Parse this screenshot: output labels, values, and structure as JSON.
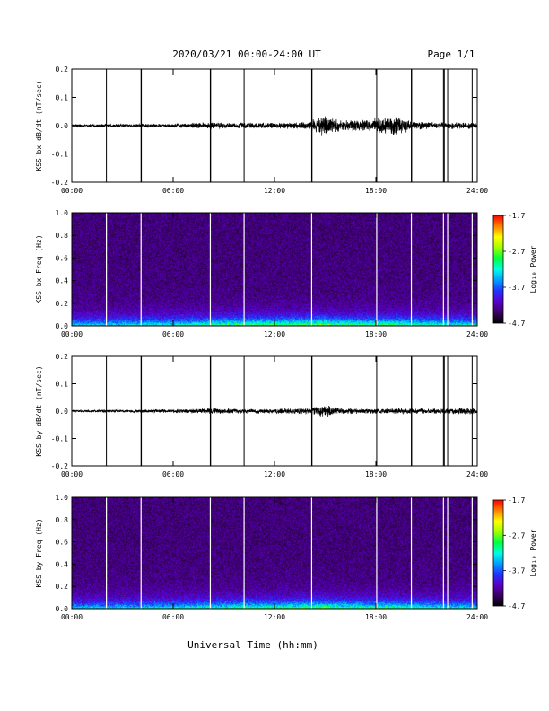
{
  "header": {
    "title": "2020/03/21  00:00-24:00 UT",
    "page": "Page 1/1"
  },
  "xaxis": {
    "label": "Universal Time (hh:mm)",
    "ticks": [
      "00:00",
      "06:00",
      "12:00",
      "18:00",
      "24:00"
    ]
  },
  "colors": {
    "colormap": [
      "#000000",
      "#3b0064",
      "#5a00c8",
      "#2233ff",
      "#00a0ff",
      "#00ffe0",
      "#00ff40",
      "#a0ff00",
      "#ffff00",
      "#ff8000",
      "#ff0000"
    ],
    "trace": "#000000",
    "gap_lines_time": "#000000",
    "gap_lines_spec": "#ffffff"
  },
  "chart_data": [
    {
      "type": "line",
      "ylabel": "KSS bx dB/dt (nT/sec)",
      "ylim": [
        -0.2,
        0.2
      ],
      "yticks": [
        "0.2",
        "0.1",
        "0.0",
        "-0.1",
        "-0.2"
      ],
      "xlim_hours": [
        0,
        24
      ],
      "gap_times_hours": [
        2.05,
        4.1,
        4.12,
        8.2,
        8.22,
        10.2,
        14.2,
        14.22,
        18.05,
        20.1,
        20.12,
        22.0,
        22.05,
        22.25,
        23.7
      ],
      "noise_envelope": {
        "x_hours": [
          0,
          3,
          6,
          8,
          10,
          12,
          14,
          14.5,
          15,
          15.5,
          16,
          17,
          18,
          18.5,
          19,
          19.5,
          20,
          21,
          22,
          23,
          24
        ],
        "amplitude": [
          0.004,
          0.005,
          0.006,
          0.009,
          0.008,
          0.008,
          0.01,
          0.022,
          0.028,
          0.02,
          0.014,
          0.016,
          0.02,
          0.026,
          0.028,
          0.024,
          0.014,
          0.01,
          0.009,
          0.009,
          0.008
        ]
      }
    },
    {
      "type": "heatmap",
      "ylabel": "KSS bx Freq (Hz)",
      "ylim": [
        0.0,
        1.0
      ],
      "yticks": [
        "1.0",
        "0.8",
        "0.6",
        "0.4",
        "0.2",
        "0.0"
      ],
      "xlim_hours": [
        0,
        24
      ],
      "colorbar": {
        "label": "Log₁₀ Power",
        "range": [
          -4.7,
          -1.7
        ],
        "ticks": [
          "-1.7",
          "-2.7",
          "-3.7",
          "-4.7"
        ]
      },
      "gap_times_hours": [
        2.05,
        4.1,
        8.2,
        10.2,
        14.2,
        18.05,
        20.1,
        22.0,
        22.25,
        23.7
      ],
      "low_freq_power": {
        "x_hours": [
          0,
          3,
          6,
          8,
          10,
          12,
          14,
          15,
          16,
          18,
          19,
          20,
          22,
          24
        ],
        "intensity": [
          0.35,
          0.4,
          0.42,
          0.5,
          0.55,
          0.55,
          0.6,
          0.62,
          0.55,
          0.52,
          0.55,
          0.5,
          0.45,
          0.42
        ]
      }
    },
    {
      "type": "line",
      "ylabel": "KSS by dB/dt (nT/sec)",
      "ylim": [
        -0.2,
        0.2
      ],
      "yticks": [
        "0.2",
        "0.1",
        "0.0",
        "-0.1",
        "-0.2"
      ],
      "xlim_hours": [
        0,
        24
      ],
      "gap_times_hours": [
        2.05,
        4.1,
        4.12,
        8.2,
        8.22,
        10.2,
        14.2,
        14.22,
        18.05,
        20.1,
        20.12,
        22.0,
        22.05,
        22.25,
        23.7
      ],
      "noise_envelope": {
        "x_hours": [
          0,
          3,
          6,
          8,
          10,
          12,
          14,
          14.5,
          15,
          15.5,
          16,
          17,
          18,
          19,
          20,
          21,
          22,
          23,
          24
        ],
        "amplitude": [
          0.003,
          0.004,
          0.005,
          0.008,
          0.007,
          0.007,
          0.008,
          0.014,
          0.018,
          0.012,
          0.009,
          0.008,
          0.008,
          0.009,
          0.008,
          0.007,
          0.008,
          0.01,
          0.008
        ]
      }
    },
    {
      "type": "heatmap",
      "ylabel": "KSS by Freq (Hz)",
      "ylim": [
        0.0,
        1.0
      ],
      "yticks": [
        "1.0",
        "0.8",
        "0.6",
        "0.4",
        "0.2",
        "0.0"
      ],
      "xlim_hours": [
        0,
        24
      ],
      "colorbar": {
        "label": "Log₁₀ Power",
        "range": [
          -4.7,
          -1.7
        ],
        "ticks": [
          "-1.7",
          "-2.7",
          "-3.7",
          "-4.7"
        ]
      },
      "gap_times_hours": [
        2.05,
        4.1,
        8.2,
        10.2,
        14.2,
        18.05,
        20.1,
        22.0,
        22.25,
        23.7
      ],
      "low_freq_power": {
        "x_hours": [
          0,
          3,
          6,
          8,
          10,
          12,
          14,
          15,
          16,
          18,
          19,
          20,
          22,
          24
        ],
        "intensity": [
          0.33,
          0.36,
          0.4,
          0.45,
          0.5,
          0.5,
          0.55,
          0.58,
          0.5,
          0.48,
          0.5,
          0.47,
          0.42,
          0.4
        ]
      }
    }
  ]
}
